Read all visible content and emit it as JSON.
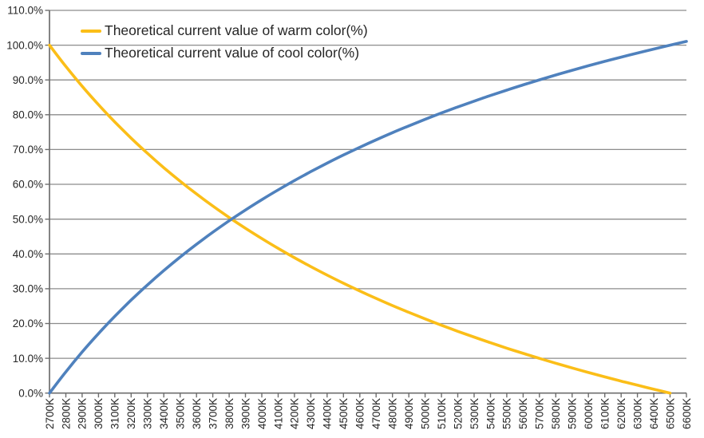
{
  "colors": {
    "background": "#FFFFFF",
    "gridline": "#8C8C8C",
    "axis": "#6E6E6E",
    "tick": "#6E6E6E",
    "text": "#262626",
    "warm_series": "#FBBE18",
    "cool_series": "#4F81BD"
  },
  "chart_data": {
    "type": "line",
    "title": "",
    "xlabel": "",
    "ylabel": "",
    "ylim": [
      0,
      110
    ],
    "grid": "horizontal major gridlines every 10%",
    "legend_position": "top-left inside plot area",
    "x_tick_label_rotation_deg": -90,
    "x_categories": [
      "2700K",
      "2800K",
      "2900K",
      "3000K",
      "3100K",
      "3200K",
      "3300K",
      "3400K",
      "3500K",
      "3600K",
      "3700K",
      "3800K",
      "3900K",
      "4000K",
      "4100K",
      "4200K",
      "4300K",
      "4400K",
      "4500K",
      "4600K",
      "4700K",
      "4800K",
      "4900K",
      "5000K",
      "5100K",
      "5200K",
      "5300K",
      "5400K",
      "5500K",
      "5600K",
      "5700K",
      "5800K",
      "5900K",
      "6000K",
      "6100K",
      "6200K",
      "6300K",
      "6400K",
      "6500K",
      "6600K"
    ],
    "y_tick_values": [
      0,
      10,
      20,
      30,
      40,
      50,
      60,
      70,
      80,
      90,
      100,
      110
    ],
    "y_tick_labels": [
      "0.0%",
      "10.0%",
      "20.0%",
      "30.0%",
      "40.0%",
      "50.0%",
      "60.0%",
      "70.0%",
      "80.0%",
      "90.0%",
      "100.0%",
      "110.0%"
    ],
    "series": [
      {
        "name": "Theoretical current value of warm color(%)",
        "color": "#FBBE18",
        "values": [
          100.0,
          93.89,
          88.2,
          82.89,
          77.93,
          73.27,
          68.9,
          64.78,
          60.9,
          57.24,
          53.77,
          50.48,
          47.37,
          44.41,
          41.59,
          38.91,
          36.35,
          33.91,
          31.58,
          29.35,
          27.21,
          25.16,
          23.2,
          21.32,
          19.5,
          17.76,
          16.09,
          14.47,
          12.92,
          11.42,
          9.97,
          8.58,
          7.23,
          5.92,
          4.66,
          3.44,
          2.26,
          1.11,
          0.0,
          null
        ]
      },
      {
        "name": "Theoretical current value of cool color(%)",
        "color": "#4F81BD",
        "values": [
          0.0,
          6.11,
          11.8,
          17.11,
          22.07,
          26.73,
          31.1,
          35.22,
          39.1,
          42.76,
          46.23,
          49.52,
          52.63,
          55.59,
          58.41,
          61.09,
          63.65,
          66.09,
          68.42,
          70.65,
          72.79,
          74.84,
          76.8,
          78.68,
          80.5,
          82.24,
          83.91,
          85.53,
          87.08,
          88.58,
          90.03,
          91.42,
          92.77,
          94.08,
          95.34,
          96.56,
          97.74,
          98.89,
          100.0,
          101.08
        ]
      }
    ],
    "annotations": {
      "crossing_point": "curves cross at ~50% near 3800K",
      "warm_reaches_zero_at": "6500K",
      "cool_end_value_pct": 101.08
    }
  }
}
